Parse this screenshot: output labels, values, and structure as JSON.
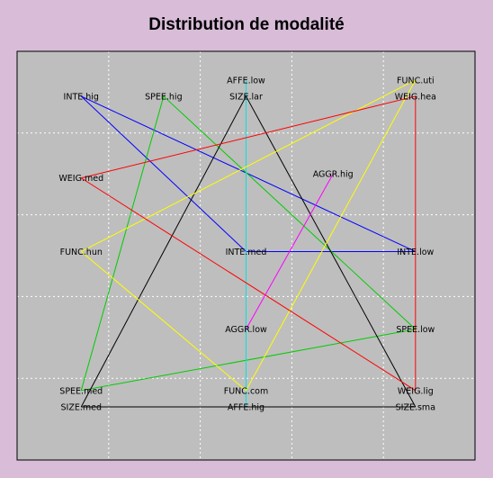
{
  "chart_data": {
    "type": "scatter",
    "title": "Distribution de modalité",
    "xlim": [
      0,
      100
    ],
    "ylim": [
      0,
      100
    ],
    "grid": true,
    "colors": {
      "background": "#d8bcd8",
      "plot": "#bebebe",
      "grid": "#ffffff"
    },
    "points": [
      {
        "id": "inte_hig",
        "label": "INTE.hig",
        "x": 14,
        "y": 89
      },
      {
        "id": "spee_hig",
        "label": "SPEE.hig",
        "x": 32,
        "y": 89
      },
      {
        "id": "affe_low",
        "label": "AFFE.low",
        "x": 50,
        "y": 93
      },
      {
        "id": "size_lar",
        "label": "SIZE.lar",
        "x": 50,
        "y": 89
      },
      {
        "id": "func_uti",
        "label": "FUNC.uti",
        "x": 87,
        "y": 93
      },
      {
        "id": "weig_hea",
        "label": "WEIG.hea",
        "x": 87,
        "y": 89
      },
      {
        "id": "weig_med",
        "label": "WEIG.med",
        "x": 14,
        "y": 69
      },
      {
        "id": "aggr_hig",
        "label": "AGGR.hig",
        "x": 69,
        "y": 70
      },
      {
        "id": "func_hun",
        "label": "FUNC.hun",
        "x": 14,
        "y": 51
      },
      {
        "id": "inte_med",
        "label": "INTE.med",
        "x": 50,
        "y": 51
      },
      {
        "id": "inte_low",
        "label": "INTE.low",
        "x": 87,
        "y": 51
      },
      {
        "id": "aggr_low",
        "label": "AGGR.low",
        "x": 50,
        "y": 32
      },
      {
        "id": "spee_low",
        "label": "SPEE.low",
        "x": 87,
        "y": 32
      },
      {
        "id": "spee_med",
        "label": "SPEE.med",
        "x": 14,
        "y": 17
      },
      {
        "id": "size_med",
        "label": "SIZE.med",
        "x": 14,
        "y": 13
      },
      {
        "id": "func_com",
        "label": "FUNC.com",
        "x": 50,
        "y": 17
      },
      {
        "id": "affe_hig",
        "label": "AFFE.hig",
        "x": 50,
        "y": 13
      },
      {
        "id": "weig_lig",
        "label": "WEIG.lig",
        "x": 87,
        "y": 17
      },
      {
        "id": "size_sma",
        "label": "SIZE.sma",
        "x": 87,
        "y": 13
      }
    ],
    "series": [
      {
        "color": "#0000ff",
        "path": [
          "inte_hig",
          "inte_med",
          "inte_low",
          "inte_hig"
        ]
      },
      {
        "color": "#00cc00",
        "path": [
          "spee_hig",
          "spee_med",
          "spee_low",
          "spee_hig"
        ]
      },
      {
        "color": "#00e5e5",
        "path": [
          "affe_low",
          "affe_hig"
        ]
      },
      {
        "color": "#000000",
        "path": [
          "size_lar",
          "size_med",
          "size_sma",
          "size_lar"
        ]
      },
      {
        "color": "#ffff00",
        "path": [
          "func_uti",
          "func_hun",
          "func_com",
          "func_uti"
        ]
      },
      {
        "color": "#ff0000",
        "path": [
          "weig_hea",
          "weig_med",
          "weig_lig",
          "weig_hea"
        ]
      },
      {
        "color": "#ff00ff",
        "path": [
          "aggr_hig",
          "aggr_low"
        ]
      }
    ]
  }
}
